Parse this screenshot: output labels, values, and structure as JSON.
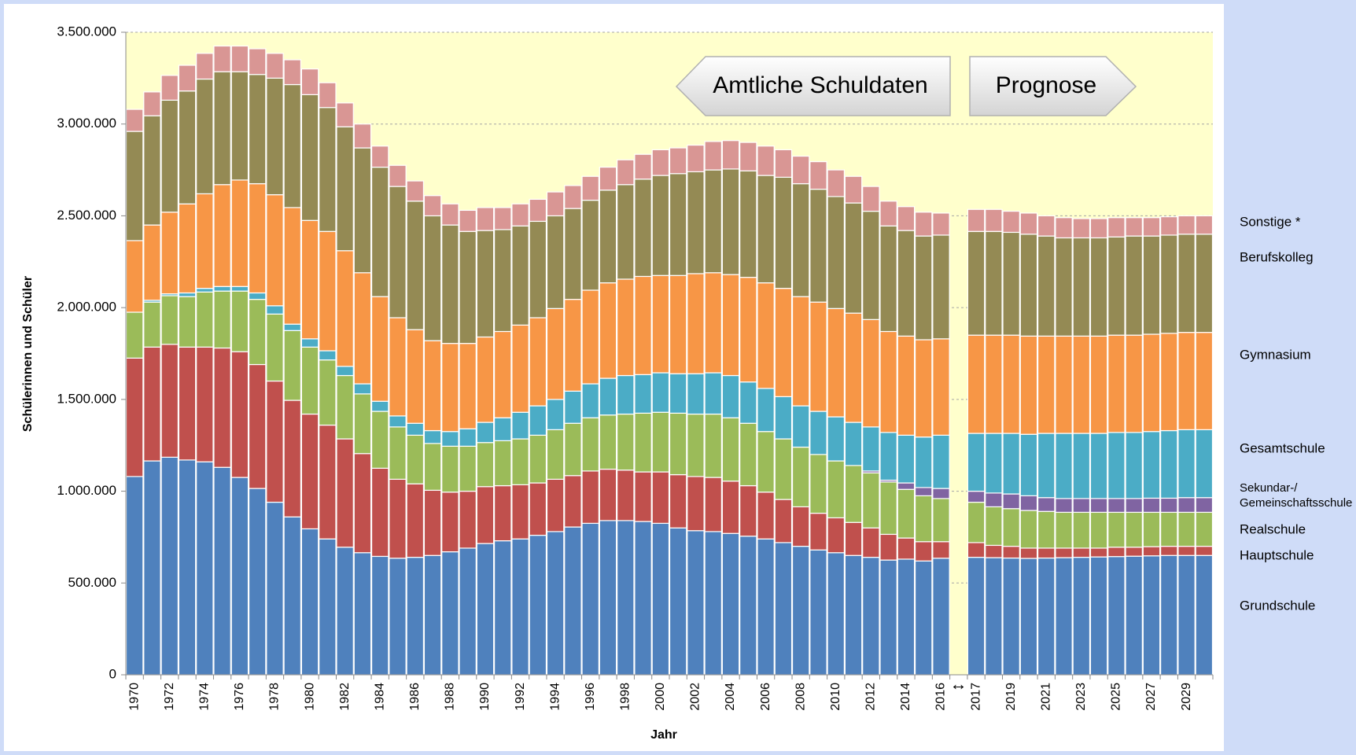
{
  "chart_data": {
    "type": "stacked_bar",
    "y_label": "Schülerinnen und Schüler",
    "x_label": "Jahr",
    "annotations": [
      "Amtliche Schuldaten",
      "Prognose"
    ],
    "categories": [
      "1970",
      null,
      "1972",
      null,
      "1974",
      null,
      "1976",
      null,
      "1978",
      null,
      "1980",
      null,
      "1982",
      null,
      "1984",
      null,
      "1986",
      null,
      "1988",
      null,
      "1990",
      null,
      "1992",
      null,
      "1994",
      null,
      "1996",
      null,
      "1998",
      null,
      "2000",
      null,
      "2002",
      null,
      "2004",
      null,
      "2006",
      null,
      "2008",
      null,
      "2010",
      null,
      "2012",
      null,
      "2014",
      null,
      "2016",
      "↕",
      "2017",
      null,
      "2019",
      null,
      "2021",
      null,
      "2023",
      null,
      "2025",
      null,
      "2027",
      null,
      "2029",
      null
    ],
    "ylim": [
      0,
      3500000
    ],
    "yticks": [
      0,
      {
        "value": 500000,
        "label": "500.000"
      },
      {
        "value": 1000000,
        "label": "1.000.000"
      },
      {
        "value": 1500000,
        "label": "1.500.000"
      },
      {
        "value": 2000000,
        "label": "2.000.000"
      },
      {
        "value": 2500000,
        "label": "2.500.000"
      },
      {
        "value": 3000000,
        "label": "3.000.000"
      },
      {
        "value": 3500000,
        "label": "3.500.000"
      }
    ],
    "grid": true,
    "series": [
      {
        "name": "Grundschule",
        "color": "#4f81bd",
        "values": [
          1080000,
          1165000,
          1185000,
          1170000,
          1160000,
          1130000,
          1075000,
          1015000,
          940000,
          860000,
          795000,
          740000,
          695000,
          665000,
          645000,
          635000,
          640000,
          650000,
          670000,
          690000,
          715000,
          730000,
          740000,
          760000,
          780000,
          805000,
          825000,
          840000,
          840000,
          835000,
          825000,
          800000,
          785000,
          780000,
          770000,
          755000,
          740000,
          720000,
          700000,
          680000,
          665000,
          650000,
          640000,
          625000,
          630000,
          620000,
          635000,
          null,
          640000,
          638000,
          636000,
          634000,
          636000,
          638000,
          640000,
          642000,
          644000,
          646000,
          648000,
          650000,
          650000,
          650000
        ]
      },
      {
        "name": "Hauptschule",
        "color": "#c0504d",
        "values": [
          645000,
          620000,
          615000,
          615000,
          625000,
          650000,
          685000,
          675000,
          660000,
          635000,
          625000,
          620000,
          590000,
          540000,
          480000,
          430000,
          400000,
          355000,
          325000,
          310000,
          310000,
          300000,
          295000,
          285000,
          285000,
          280000,
          285000,
          280000,
          275000,
          270000,
          280000,
          290000,
          295000,
          295000,
          285000,
          275000,
          255000,
          235000,
          215000,
          200000,
          190000,
          180000,
          160000,
          140000,
          115000,
          105000,
          90000,
          null,
          80000,
          67000,
          64000,
          56000,
          54000,
          52000,
          50000,
          48000,
          51000,
          49000,
          50000,
          50000,
          50000,
          50000
        ]
      },
      {
        "name": "Realschule",
        "color": "#9bbb59",
        "values": [
          250000,
          245000,
          265000,
          275000,
          300000,
          310000,
          330000,
          355000,
          365000,
          380000,
          365000,
          355000,
          345000,
          325000,
          310000,
          285000,
          265000,
          255000,
          250000,
          245000,
          240000,
          245000,
          250000,
          260000,
          270000,
          285000,
          290000,
          295000,
          305000,
          320000,
          325000,
          335000,
          340000,
          345000,
          345000,
          340000,
          330000,
          330000,
          325000,
          320000,
          310000,
          310000,
          300000,
          285000,
          265000,
          250000,
          235000,
          null,
          220000,
          210000,
          205000,
          205000,
          200000,
          195000,
          195000,
          195000,
          190000,
          190000,
          187000,
          185000,
          185000,
          185000
        ]
      },
      {
        "name": "Sekundar-/\nGemeinschaftsschule",
        "color": "#8064a2",
        "values": [
          0,
          0,
          0,
          0,
          0,
          0,
          0,
          0,
          0,
          0,
          0,
          0,
          0,
          0,
          0,
          0,
          0,
          0,
          0,
          0,
          0,
          0,
          0,
          0,
          0,
          0,
          0,
          0,
          0,
          0,
          0,
          0,
          0,
          0,
          0,
          0,
          0,
          0,
          0,
          0,
          0,
          0,
          10000,
          10000,
          35000,
          45000,
          55000,
          null,
          60000,
          75000,
          80000,
          80000,
          75000,
          75000,
          75000,
          75000,
          75000,
          75000,
          77000,
          77000,
          80000,
          80000
        ]
      },
      {
        "name": "Gesamtschule",
        "color": "#4bacc6",
        "values": [
          0,
          10000,
          10000,
          20000,
          20000,
          25000,
          25000,
          35000,
          45000,
          35000,
          45000,
          50000,
          50000,
          55000,
          55000,
          60000,
          65000,
          70000,
          80000,
          95000,
          110000,
          125000,
          145000,
          160000,
          165000,
          175000,
          185000,
          200000,
          210000,
          210000,
          215000,
          215000,
          220000,
          225000,
          230000,
          225000,
          235000,
          230000,
          225000,
          235000,
          240000,
          235000,
          240000,
          260000,
          260000,
          275000,
          290000,
          null,
          315000,
          325000,
          330000,
          335000,
          350000,
          355000,
          355000,
          355000,
          360000,
          360000,
          363000,
          368000,
          370000,
          370000
        ]
      },
      {
        "name": "Gymnasium",
        "color": "#f79646",
        "values": [
          390000,
          410000,
          445000,
          485000,
          515000,
          555000,
          580000,
          595000,
          605000,
          635000,
          645000,
          650000,
          630000,
          605000,
          570000,
          535000,
          510000,
          490000,
          480000,
          465000,
          465000,
          470000,
          475000,
          480000,
          495000,
          500000,
          510000,
          520000,
          525000,
          535000,
          530000,
          535000,
          545000,
          545000,
          550000,
          570000,
          575000,
          590000,
          595000,
          595000,
          590000,
          595000,
          585000,
          550000,
          540000,
          530000,
          525000,
          null,
          535000,
          535000,
          535000,
          535000,
          530000,
          530000,
          530000,
          530000,
          530000,
          530000,
          530000,
          530000,
          530000,
          530000
        ]
      },
      {
        "name": "Berufskolleg",
        "color": "#948a54",
        "values": [
          595000,
          595000,
          610000,
          615000,
          625000,
          615000,
          590000,
          595000,
          635000,
          670000,
          685000,
          675000,
          675000,
          680000,
          705000,
          715000,
          700000,
          680000,
          645000,
          610000,
          580000,
          555000,
          540000,
          525000,
          505000,
          495000,
          490000,
          505000,
          515000,
          530000,
          545000,
          555000,
          555000,
          560000,
          575000,
          580000,
          585000,
          605000,
          615000,
          615000,
          610000,
          600000,
          590000,
          575000,
          575000,
          565000,
          565000,
          null,
          565000,
          565000,
          560000,
          555000,
          545000,
          535000,
          535000,
          535000,
          535000,
          540000,
          535000,
          535000,
          535000,
          535000
        ]
      },
      {
        "name": "Sonstige *",
        "color": "#d99694",
        "values": [
          120000,
          130000,
          135000,
          140000,
          140000,
          140000,
          140000,
          140000,
          135000,
          135000,
          140000,
          135000,
          130000,
          130000,
          115000,
          115000,
          110000,
          110000,
          115000,
          115000,
          125000,
          120000,
          120000,
          120000,
          130000,
          125000,
          130000,
          125000,
          135000,
          135000,
          140000,
          140000,
          145000,
          155000,
          155000,
          155000,
          160000,
          150000,
          150000,
          150000,
          145000,
          145000,
          135000,
          135000,
          130000,
          130000,
          120000,
          null,
          120000,
          120000,
          115000,
          115000,
          110000,
          110000,
          105000,
          105000,
          105000,
          100000,
          100000,
          100000,
          100000,
          100000
        ]
      }
    ]
  }
}
